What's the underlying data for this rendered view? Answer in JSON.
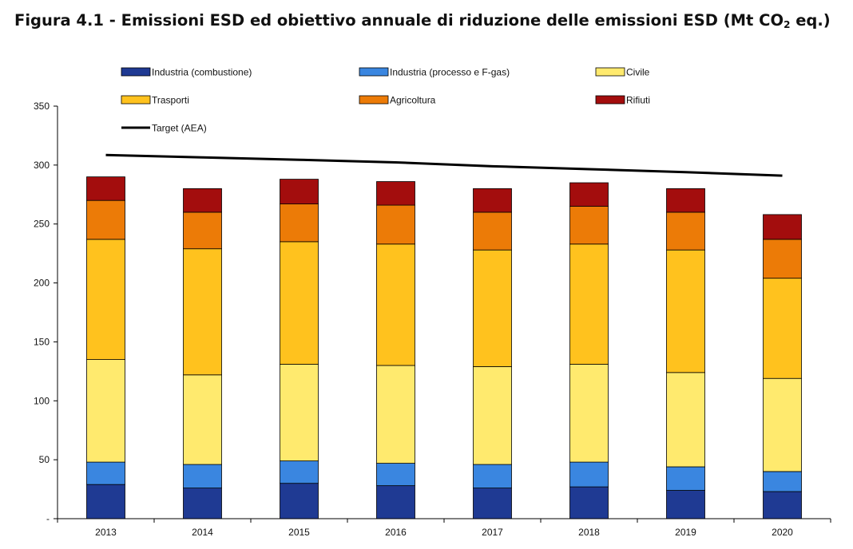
{
  "title": {
    "main": "Figura 4.1 - Emissioni ESD ed obiettivo annuale di riduzione delle emissioni ESD (Mt CO",
    "subscript": "2",
    "suffix": " eq.)"
  },
  "chart_data": {
    "type": "bar",
    "stacked": true,
    "title": "Figura 4.1 - Emissioni ESD ed obiettivo annuale di riduzione delle emissioni ESD (Mt CO2 eq.)",
    "xlabel": "",
    "ylabel": "",
    "ylim": [
      0,
      350
    ],
    "yticks": [
      0,
      50,
      100,
      150,
      200,
      250,
      300,
      350
    ],
    "ytick_labels": [
      "-",
      "50",
      "100",
      "150",
      "200",
      "250",
      "300",
      "350"
    ],
    "grid": false,
    "legend_position": "top",
    "categories": [
      "2013",
      "2014",
      "2015",
      "2016",
      "2017",
      "2018",
      "2019",
      "2020"
    ],
    "series": [
      {
        "name": "Industria (combustione)",
        "color": "#1f3a93",
        "values": [
          29,
          26,
          30,
          28,
          26,
          27,
          24,
          23
        ]
      },
      {
        "name": "Industria (processo e F-gas)",
        "color": "#3a86e0",
        "values": [
          19,
          20,
          19,
          19,
          20,
          21,
          20,
          17
        ]
      },
      {
        "name": "Civile",
        "color": "#ffea6e",
        "values": [
          87,
          76,
          82,
          83,
          83,
          83,
          80,
          79
        ]
      },
      {
        "name": "Trasporti",
        "color": "#ffc21e",
        "values": [
          102,
          107,
          104,
          103,
          99,
          102,
          104,
          85
        ]
      },
      {
        "name": "Agricoltura",
        "color": "#ec7b07",
        "values": [
          33,
          31,
          32,
          33,
          32,
          32,
          32,
          33
        ]
      },
      {
        "name": "Rifiuti",
        "color": "#a30d0d",
        "values": [
          20,
          20,
          21,
          20,
          20,
          20,
          20,
          21
        ]
      }
    ],
    "line_series": {
      "name": "Target (AEA)",
      "color": "#000000",
      "values": [
        308.5,
        306.5,
        304.5,
        302.3,
        299,
        296.5,
        294,
        291
      ]
    }
  }
}
